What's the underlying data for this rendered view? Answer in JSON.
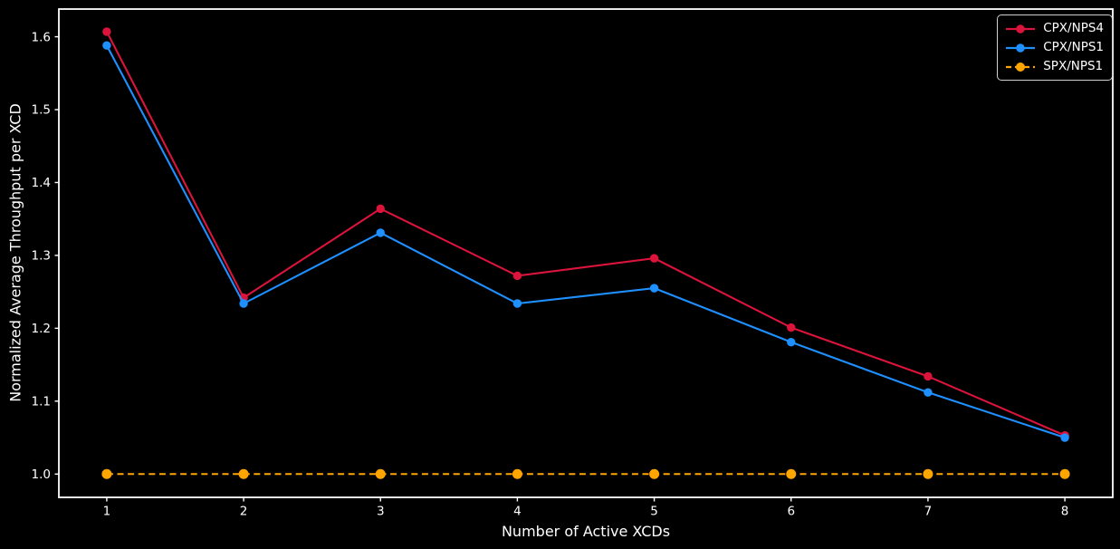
{
  "figure": {
    "background": "#000000",
    "spine_color": "#ffffff",
    "text_color": "#ffffff",
    "axes": {
      "xlabel": "Number of Active XCDs",
      "ylabel": "Normalized Average Throughput per XCD",
      "x_ticks": [
        1,
        2,
        3,
        4,
        5,
        6,
        7,
        8
      ],
      "y_ticks": [
        1.0,
        1.1,
        1.2,
        1.3,
        1.4,
        1.5,
        1.6
      ],
      "xlim": [
        0.65,
        8.35
      ],
      "ylim": [
        0.968,
        1.638
      ]
    }
  },
  "chart_data": {
    "type": "line",
    "title": "",
    "xlabel": "Number of Active XCDs",
    "ylabel": "Normalized Average Throughput per XCD",
    "x": [
      1,
      2,
      3,
      4,
      5,
      6,
      7,
      8
    ],
    "series": [
      {
        "name": "CPX/NPS4",
        "color": "#DC143C",
        "line_style": "solid",
        "marker": "circle",
        "marker_size": 4.7,
        "values": [
          1.607,
          1.242,
          1.364,
          1.272,
          1.296,
          1.201,
          1.134,
          1.053
        ]
      },
      {
        "name": "CPX/NPS1",
        "color": "#1E90FF",
        "line_style": "solid",
        "marker": "circle",
        "marker_size": 4.7,
        "values": [
          1.588,
          1.234,
          1.331,
          1.234,
          1.255,
          1.181,
          1.112,
          1.05
        ]
      },
      {
        "name": "SPX/NPS1",
        "color": "#FFA500",
        "line_style": "dashed",
        "marker": "circle",
        "marker_size": 5.5,
        "values": [
          1.0,
          1.0,
          1.0,
          1.0,
          1.0,
          1.0,
          1.0,
          1.0
        ]
      }
    ],
    "legend_position": "upper right",
    "grid": false
  }
}
